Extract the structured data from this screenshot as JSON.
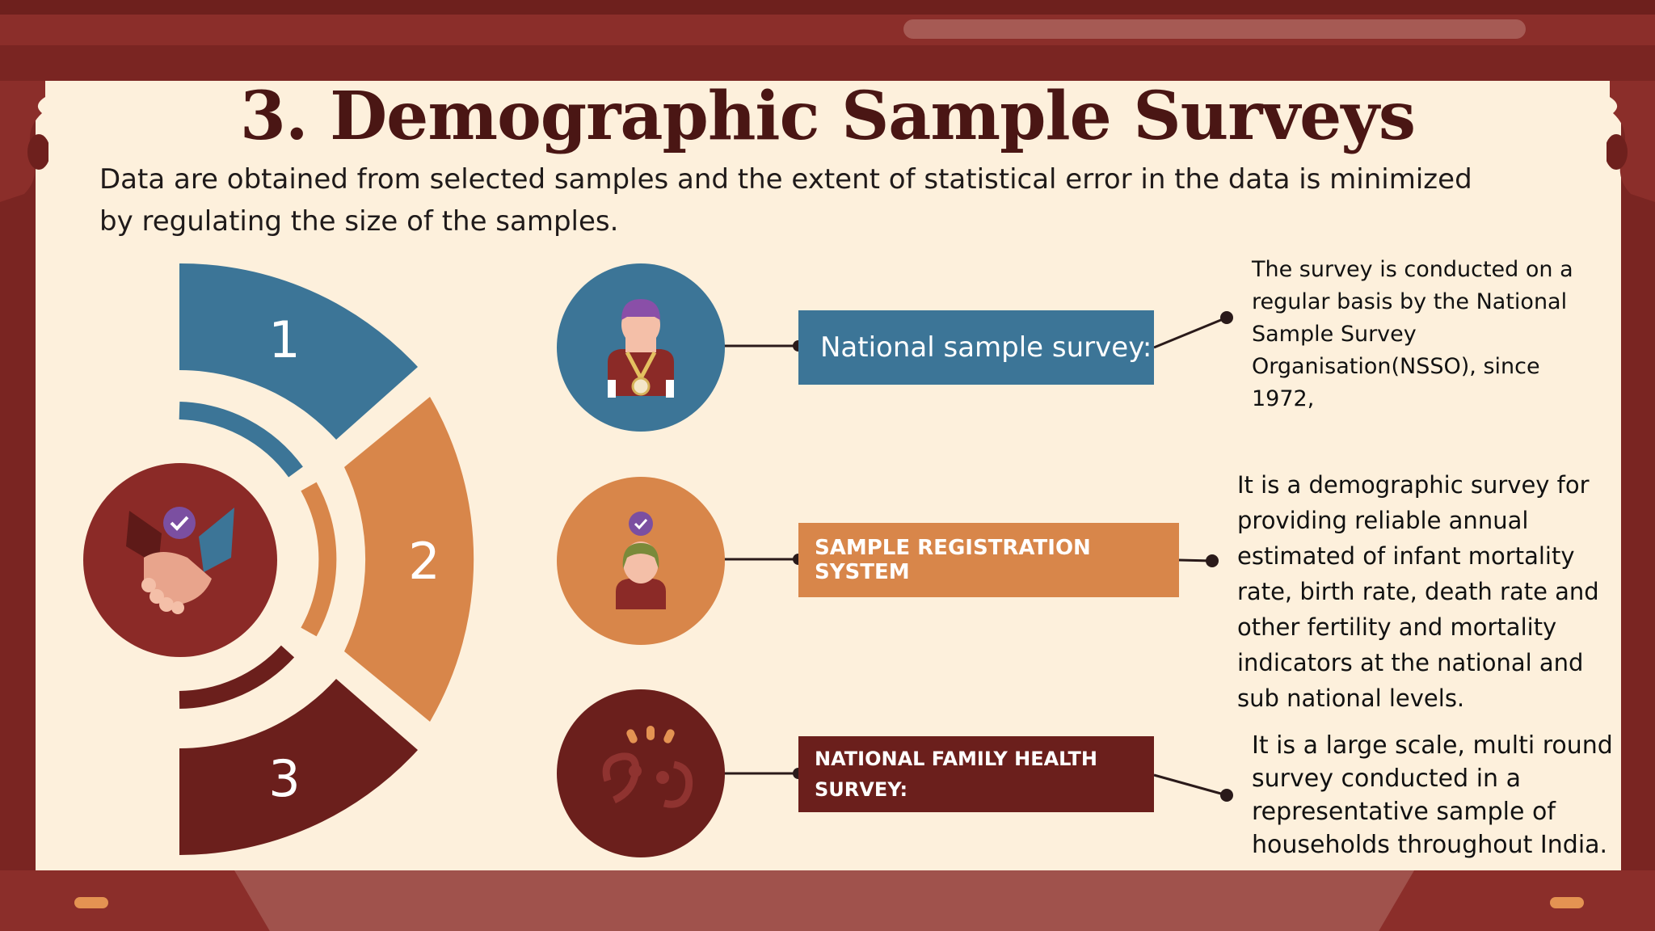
{
  "title": "3. Demographic Sample Surveys",
  "intro": "Data are obtained from selected samples and the extent of statistical error in the data is minimized by regulating the size of the samples.",
  "colors": {
    "blue": "#3c7597",
    "orange": "#d8864a",
    "maroon": "#6b1f1c",
    "background": "#fdf0dc",
    "frame": "#8b2e2a"
  },
  "segments": [
    {
      "number": "1",
      "color": "#3c7597"
    },
    {
      "number": "2",
      "color": "#d8864a"
    },
    {
      "number": "3",
      "color": "#6b1f1c"
    }
  ],
  "center_icon": "handshake-check-icon",
  "surveys": [
    {
      "icon": "medal-person-icon",
      "label": "National sample survey:",
      "description": "The survey is conducted on a regular basis by the National Sample Survey Organisation(NSSO), since 1972,"
    },
    {
      "icon": "check-person-icon",
      "label": "SAMPLE REGISTRATION SYSTEM",
      "description": "It is a demographic survey for providing reliable annual estimated of infant mortality rate, birth rate, death rate and other fertility and mortality indicators at the national and sub national levels."
    },
    {
      "icon": "idea-gears-icon",
      "label_line1": "NATIONAL FAMILY HEALTH",
      "label_line2": "SURVEY:",
      "description": "It is a large scale, multi round survey conducted in a representative sample of households throughout India."
    }
  ]
}
